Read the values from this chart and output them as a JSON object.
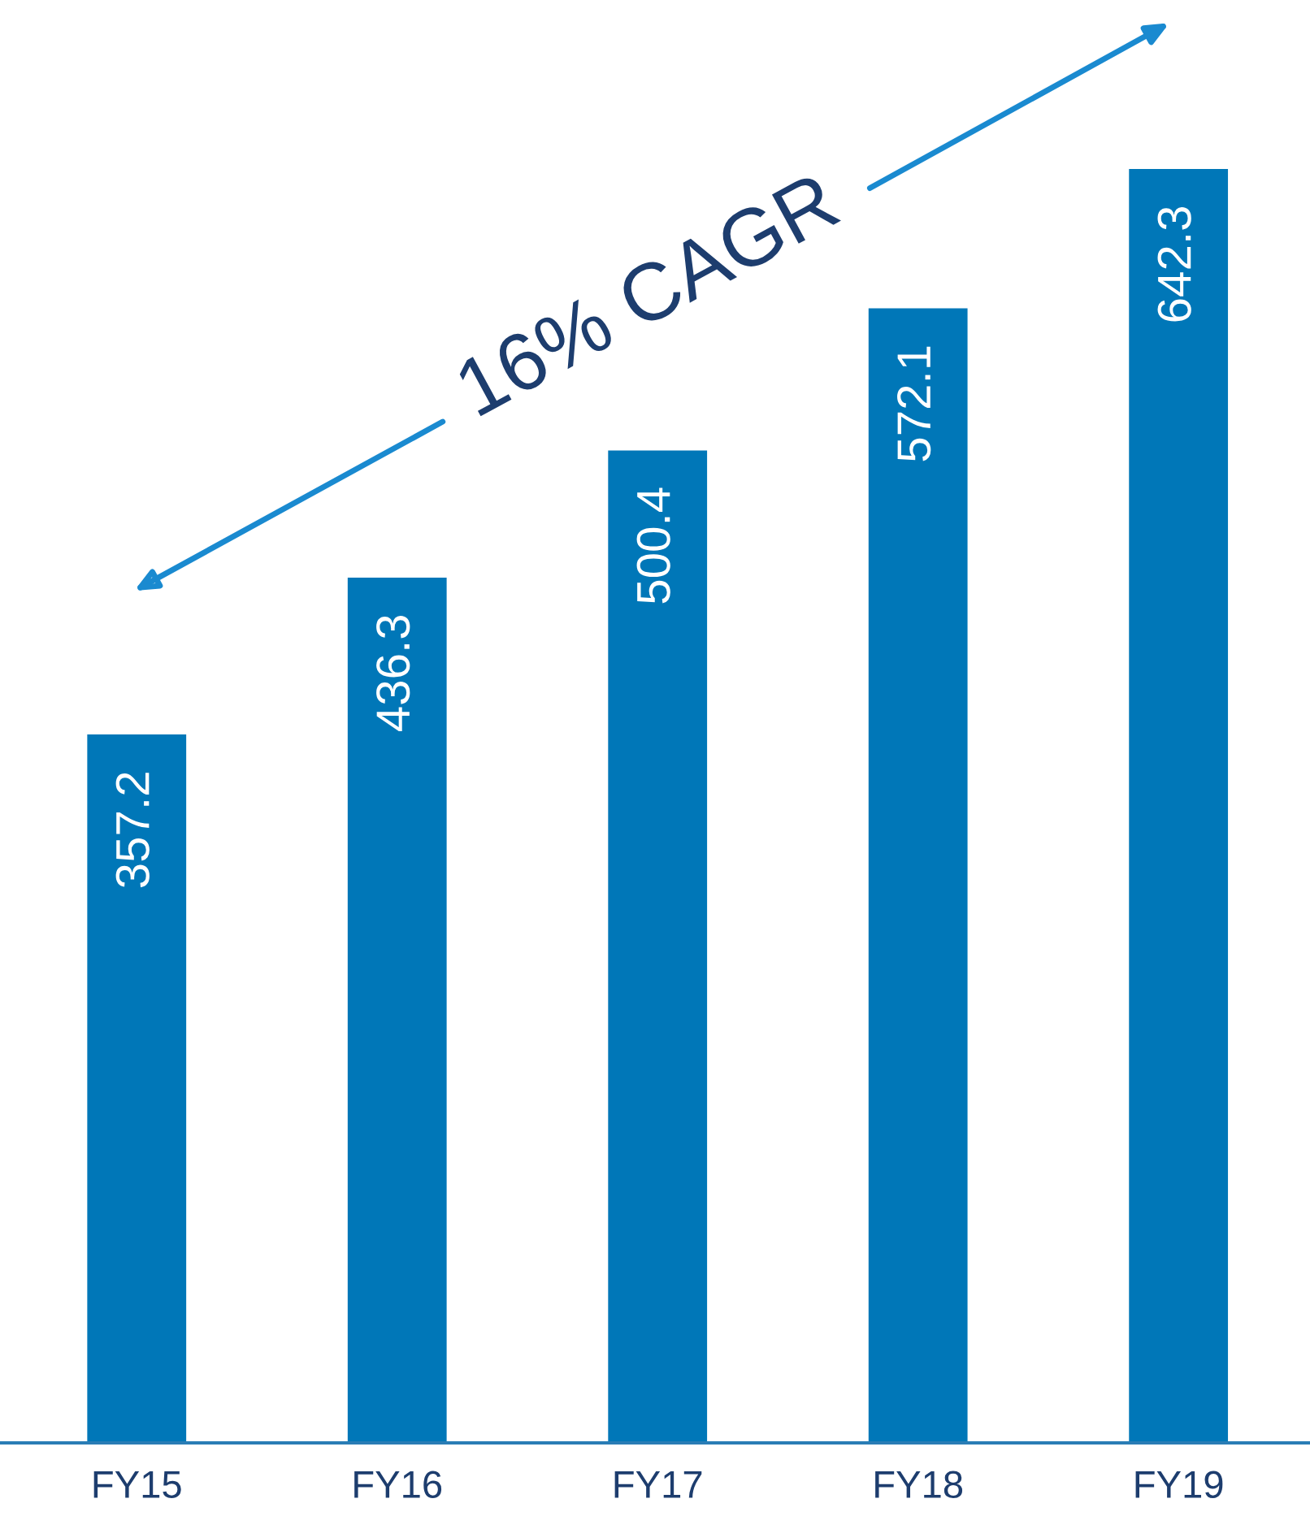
{
  "chart_data": {
    "type": "bar",
    "categories": [
      "FY15",
      "FY16",
      "FY17",
      "FY18",
      "FY19"
    ],
    "values": [
      357.2,
      436.3,
      500.4,
      572.1,
      642.3
    ],
    "color": "#0077b8",
    "data_labels": true,
    "annotations": [
      "16% CAGR"
    ]
  }
}
